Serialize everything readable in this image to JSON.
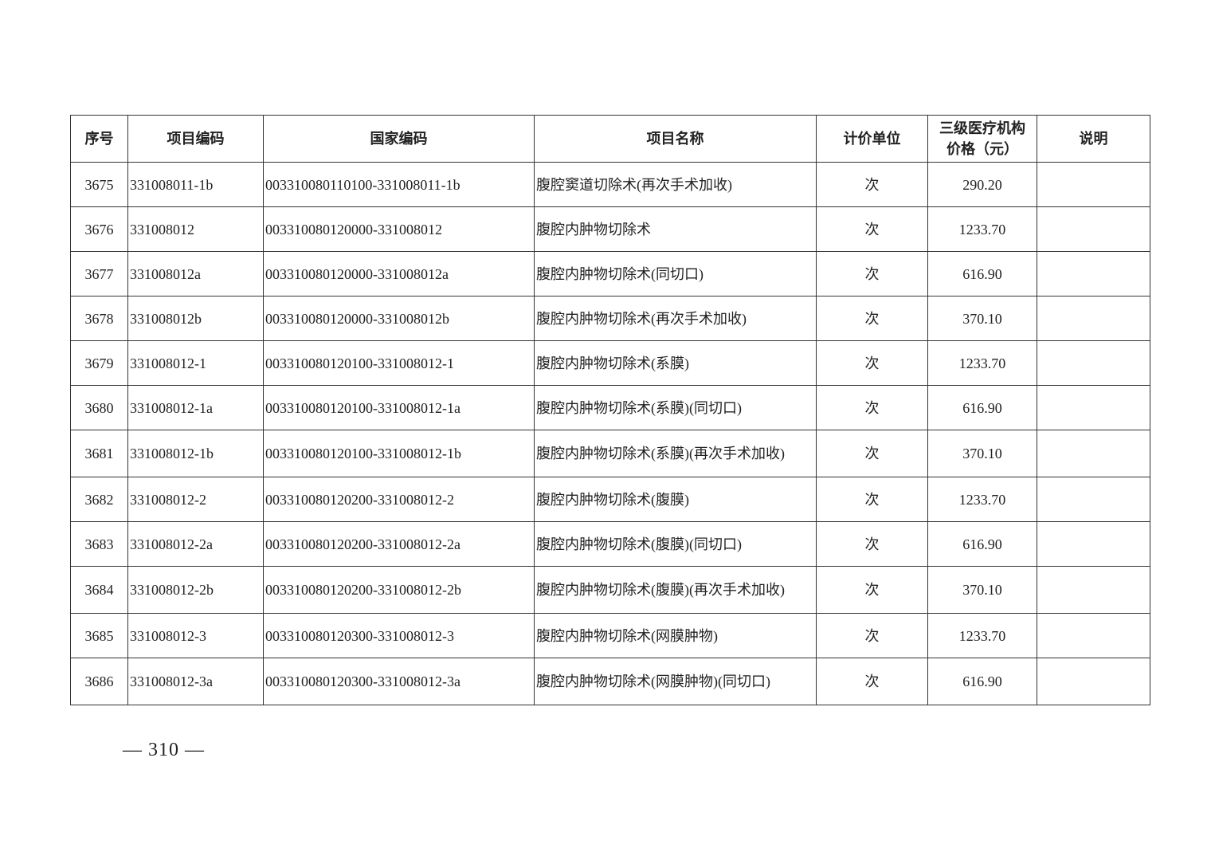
{
  "headers": [
    "序号",
    "项目编码",
    "国家编码",
    "项目名称",
    "计价单位",
    "三级医疗机构价格（元）",
    "说明"
  ],
  "header_price_lines": [
    "三级医疗机构",
    "价格（元）"
  ],
  "rows": [
    {
      "no": "3675",
      "code": "331008011-1b",
      "national": "003310080110100-331008011-1b",
      "name": "腹腔窦道切除术(再次手术加收)",
      "unit": "次",
      "price": "290.20",
      "note": ""
    },
    {
      "no": "3676",
      "code": "331008012",
      "national": "003310080120000-331008012",
      "name": "腹腔内肿物切除术",
      "unit": "次",
      "price": "1233.70",
      "note": ""
    },
    {
      "no": "3677",
      "code": "331008012a",
      "national": "003310080120000-331008012a",
      "name": "腹腔内肿物切除术(同切口)",
      "unit": "次",
      "price": "616.90",
      "note": ""
    },
    {
      "no": "3678",
      "code": "331008012b",
      "national": "003310080120000-331008012b",
      "name": "腹腔内肿物切除术(再次手术加收)",
      "unit": "次",
      "price": "370.10",
      "note": ""
    },
    {
      "no": "3679",
      "code": "331008012-1",
      "national": "003310080120100-331008012-1",
      "name": "腹腔内肿物切除术(系膜)",
      "unit": "次",
      "price": "1233.70",
      "note": ""
    },
    {
      "no": "3680",
      "code": "331008012-1a",
      "national": "003310080120100-331008012-1a",
      "name": "腹腔内肿物切除术(系膜)(同切口)",
      "unit": "次",
      "price": "616.90",
      "note": ""
    },
    {
      "no": "3681",
      "code": "331008012-1b",
      "national": "003310080120100-331008012-1b",
      "name": "腹腔内肿物切除术(系膜)(再次手术加收)",
      "unit": "次",
      "price": "370.10",
      "note": ""
    },
    {
      "no": "3682",
      "code": "331008012-2",
      "national": "003310080120200-331008012-2",
      "name": "腹腔内肿物切除术(腹膜)",
      "unit": "次",
      "price": "1233.70",
      "note": ""
    },
    {
      "no": "3683",
      "code": "331008012-2a",
      "national": "003310080120200-331008012-2a",
      "name": "腹腔内肿物切除术(腹膜)(同切口)",
      "unit": "次",
      "price": "616.90",
      "note": ""
    },
    {
      "no": "3684",
      "code": "331008012-2b",
      "national": "003310080120200-331008012-2b",
      "name": "腹腔内肿物切除术(腹膜)(再次手术加收)",
      "unit": "次",
      "price": "370.10",
      "note": ""
    },
    {
      "no": "3685",
      "code": "331008012-3",
      "national": "003310080120300-331008012-3",
      "name": "腹腔内肿物切除术(网膜肿物)",
      "unit": "次",
      "price": "1233.70",
      "note": ""
    },
    {
      "no": "3686",
      "code": "331008012-3a",
      "national": "003310080120300-331008012-3a",
      "name": "腹腔内肿物切除术(网膜肿物)(同切口)",
      "unit": "次",
      "price": "616.90",
      "note": ""
    }
  ],
  "page_number": "— 310 —"
}
